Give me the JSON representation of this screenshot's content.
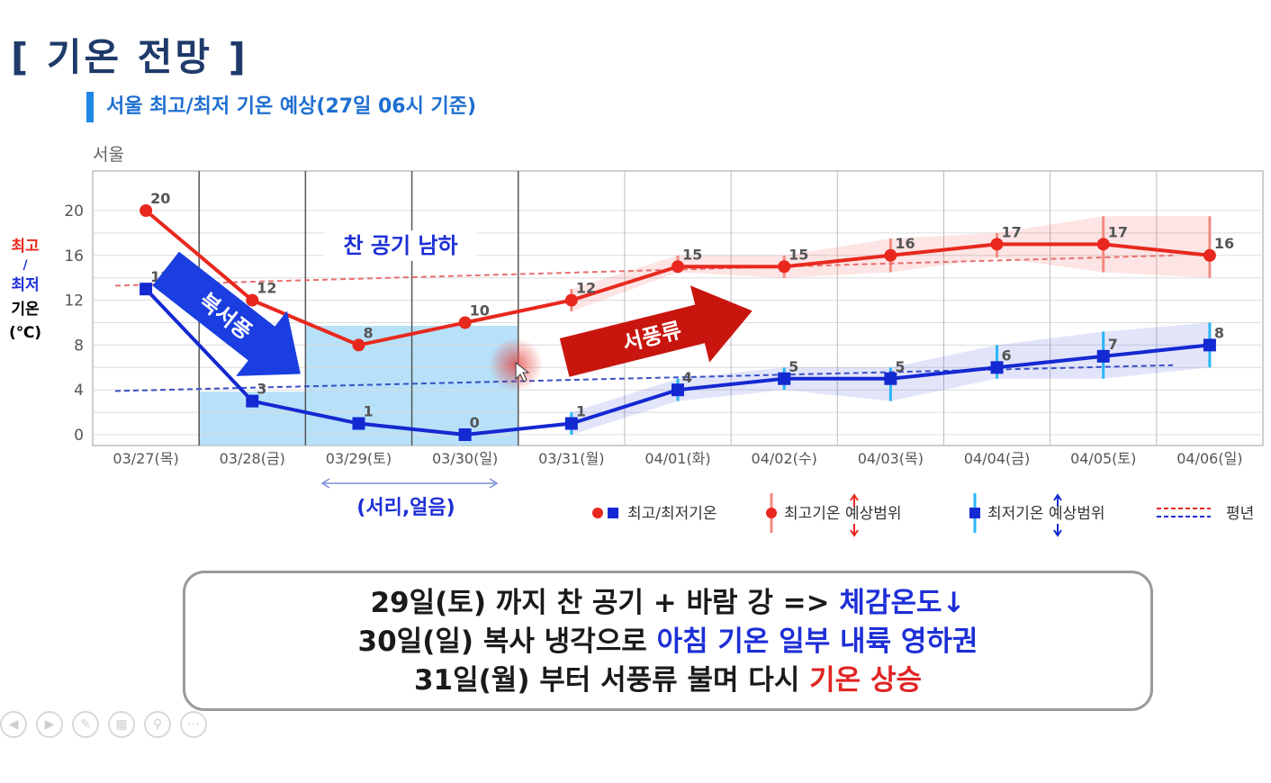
{
  "page_title": "[ 기온 전망 ]",
  "subtitle": "서울 최고/최저 기온 예상(27일 06시 기준)",
  "chart_data": {
    "type": "line",
    "region_label": "서울",
    "ylabel_lines": [
      "최고",
      "/",
      "최저",
      "기온",
      "(℃)"
    ],
    "ylim": [
      0,
      21
    ],
    "yticks": [
      0,
      4,
      8,
      12,
      16,
      20
    ],
    "grid": true,
    "categories": [
      "03/27(목)",
      "03/28(금)",
      "03/29(토)",
      "03/30(일)",
      "03/31(월)",
      "04/01(화)",
      "04/02(수)",
      "04/03(목)",
      "04/04(금)",
      "04/05(토)",
      "04/06(일)"
    ],
    "series": [
      {
        "name": "최고/최저기온",
        "role": "max",
        "color": "#e8281e",
        "marker": "circle",
        "values": [
          20,
          12,
          8,
          10,
          12,
          15,
          15,
          16,
          17,
          17,
          16
        ]
      },
      {
        "name": "최고/최저기온",
        "role": "min",
        "color": "#1429d2",
        "marker": "square",
        "values": [
          13,
          3,
          1,
          0,
          1,
          4,
          5,
          5,
          6,
          7,
          8
        ]
      }
    ],
    "normal_lines": [
      {
        "color": "#e87070",
        "from": 13.3,
        "to": 16
      },
      {
        "color": "#3a4fc6",
        "from": 3.9,
        "to": 6.2
      }
    ],
    "max_range": [
      null,
      null,
      null,
      null,
      [
        11,
        13
      ],
      [
        14.5,
        16
      ],
      [
        14,
        16
      ],
      [
        14.5,
        17.5
      ],
      [
        15.8,
        18
      ],
      [
        14.5,
        19.5
      ],
      [
        14,
        19.5
      ]
    ],
    "min_range": [
      null,
      null,
      null,
      null,
      [
        0,
        2
      ],
      [
        3,
        5
      ],
      [
        4,
        6
      ],
      [
        3,
        6
      ],
      [
        5,
        8
      ],
      [
        5,
        9.2
      ],
      [
        6,
        10
      ]
    ],
    "annotations": {
      "cold_air": "찬 공기 남하",
      "northwest_wind": "북서풍",
      "west_flow": "서풍류",
      "frost": "(서리,얼음)"
    },
    "colors": {
      "max": "#e8281e",
      "min": "#1429d2",
      "highlight": "#a9dcf8",
      "arrow_blue": "#1a3ee0",
      "arrow_red": "#c8160f"
    },
    "legend": {
      "obs": "최고/최저기온",
      "max_range": "최고기온 예상범위",
      "min_range": "최저기온 예상범위",
      "normal": "평년"
    }
  },
  "summary": {
    "line1_a": "29일(토) 까지 찬 공기 + 바람 강 => ",
    "line1_b": "체감온도↓",
    "line2_a": "30일(일) 복사 냉각으로 ",
    "line2_b": "아침 기온 일부 내륙 영하권",
    "line3_a": "31일(월) 부터 서풍류 불며 다시 ",
    "line3_b": "기온 상승"
  },
  "toolbar": [
    "prev-icon",
    "play-icon",
    "pen-icon",
    "slides-icon",
    "zoom-icon",
    "more-icon"
  ]
}
